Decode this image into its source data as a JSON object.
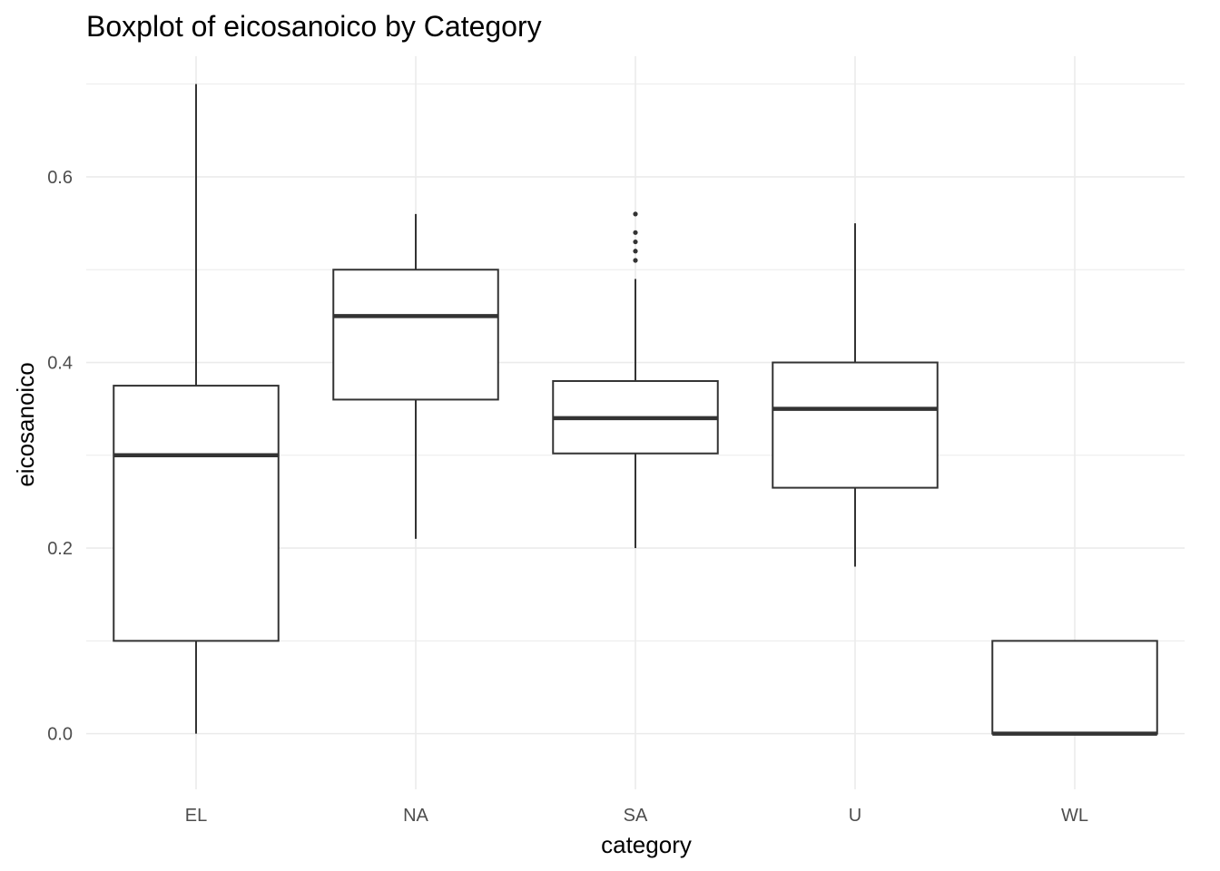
{
  "chart_data": {
    "type": "boxplot",
    "title": "Boxplot of eicosanoico by Category",
    "xlabel": "category",
    "ylabel": "eicosanoico",
    "categories": [
      "EL",
      "NA",
      "SA",
      "U",
      "WL"
    ],
    "ylim": [
      -0.06,
      0.73
    ],
    "yticks": [
      0.0,
      0.2,
      0.4,
      0.6
    ],
    "ytick_labels": [
      "0.0",
      "0.2",
      "0.4",
      "0.6"
    ],
    "grid": true,
    "boxes": [
      {
        "category": "EL",
        "lower_whisker": 0.0,
        "q1": 0.1,
        "median": 0.3,
        "q3": 0.375,
        "upper_whisker": 0.7,
        "outliers": []
      },
      {
        "category": "NA",
        "lower_whisker": 0.21,
        "q1": 0.36,
        "median": 0.45,
        "q3": 0.5,
        "upper_whisker": 0.56,
        "outliers": []
      },
      {
        "category": "SA",
        "lower_whisker": 0.2,
        "q1": 0.302,
        "median": 0.34,
        "q3": 0.38,
        "upper_whisker": 0.49,
        "outliers": [
          0.51,
          0.52,
          0.53,
          0.54,
          0.56
        ]
      },
      {
        "category": "U",
        "lower_whisker": 0.18,
        "q1": 0.265,
        "median": 0.35,
        "q3": 0.4,
        "upper_whisker": 0.55,
        "outliers": []
      },
      {
        "category": "WL",
        "lower_whisker": 0.0,
        "q1": 0.0,
        "median": 0.0,
        "q3": 0.1,
        "upper_whisker": 0.1,
        "outliers": []
      }
    ],
    "colors": {
      "box_line": "#333333",
      "grid": "#ebebeb",
      "background": "#ffffff"
    }
  }
}
